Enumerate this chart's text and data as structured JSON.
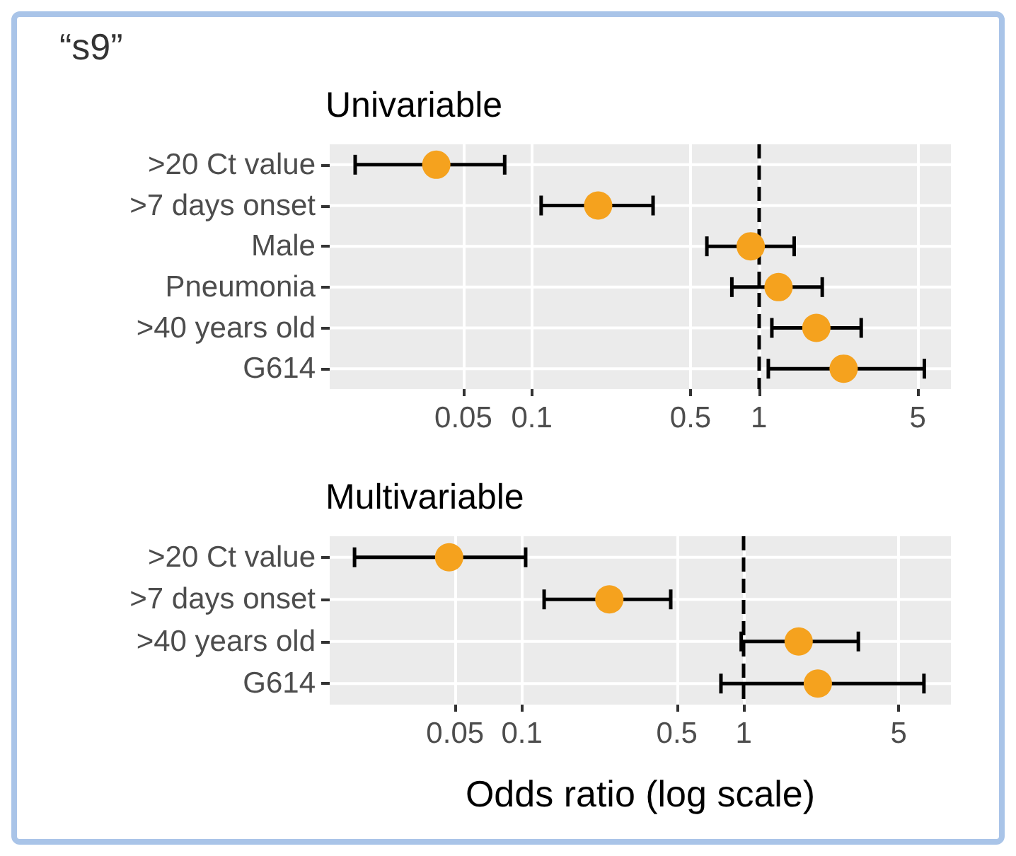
{
  "chart_data": [
    {
      "type": "scatter",
      "title": "Univariable",
      "annotations": [
        "“s9”"
      ],
      "orientation": "horizontal",
      "log": "x",
      "grid": true,
      "marker": "circle",
      "categories": [
        ">20 Ct value",
        ">7 days onset",
        "Male",
        "Pneumonia",
        ">40 years old",
        "G614"
      ],
      "values": [
        0.038,
        0.196,
        0.92,
        1.22,
        1.79,
        2.36
      ],
      "errors": [
        [
          0.0167,
          0.076
        ],
        [
          0.11,
          0.342
        ],
        [
          0.59,
          1.43
        ],
        [
          0.76,
          1.9
        ],
        [
          1.14,
          2.82
        ],
        [
          1.1,
          5.35
        ]
      ],
      "color": "#f5a21e",
      "xlim": [
        0.0129,
        7.0
      ],
      "xticks": [
        0.05,
        0.1,
        0.5,
        1,
        5
      ],
      "ref_lines": [
        {
          "axis": "x",
          "value": 1,
          "line_style": "dashed",
          "color": "#000000"
        }
      ]
    },
    {
      "type": "scatter",
      "title": "Multivariable",
      "xlabel": "Odds ratio (log scale)",
      "orientation": "horizontal",
      "log": "x",
      "grid": true,
      "marker": "circle",
      "categories": [
        ">20 Ct value",
        ">7 days onset",
        ">40 years old",
        "G614"
      ],
      "values": [
        0.047,
        0.248,
        1.77,
        2.16
      ],
      "errors": [
        [
          0.0176,
          0.104
        ],
        [
          0.126,
          0.469
        ],
        [
          0.975,
          3.29
        ],
        [
          0.79,
          6.5
        ]
      ],
      "color": "#f5a21e",
      "xlim": [
        0.0136,
        8.6
      ],
      "xticks": [
        0.05,
        0.1,
        0.5,
        1,
        5
      ],
      "ref_lines": [
        {
          "axis": "x",
          "value": 1,
          "line_style": "dashed",
          "color": "#000000"
        }
      ]
    }
  ]
}
